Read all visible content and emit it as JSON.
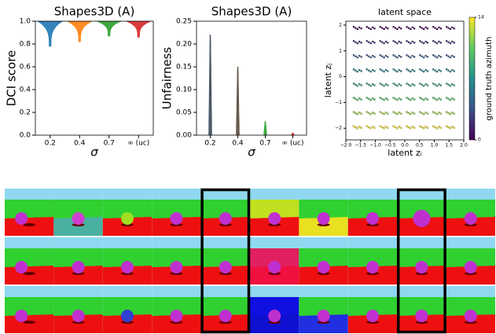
{
  "chart_data": [
    {
      "type": "violin",
      "title": "Shapes3D (A)",
      "ylabel": "DCI score",
      "xlabel": "σ",
      "categories": [
        "0.2",
        "0.4",
        "0.7",
        "∞ (uc)"
      ],
      "mins": [
        0.78,
        0.82,
        0.87,
        0.86
      ],
      "maxs": [
        1.0,
        1.0,
        1.0,
        1.0
      ],
      "colors": [
        "#1f77b4",
        "#ff7f0e",
        "#2ca02c",
        "#d62728"
      ],
      "ylim": [
        0,
        1
      ],
      "yticks": [
        {
          "value": 0,
          "label": "0.0"
        },
        0.2,
        0.4,
        0.6,
        0.8,
        {
          "value": 1,
          "label": "1.0"
        }
      ]
    },
    {
      "type": "violin",
      "title": "Shapes3D (A)",
      "ylabel": "Unfairness",
      "xlabel": "σ",
      "categories": [
        "0.2",
        "0.4",
        "0.7",
        "∞ (uc)"
      ],
      "mins": [
        0,
        0,
        0,
        0
      ],
      "maxs": [
        0.22,
        0.15,
        0.03,
        0.005
      ],
      "colors": [
        "#3a4a5a",
        "#5a4a3a",
        "#2ca02c",
        "#d62728"
      ],
      "ylim": [
        0,
        0.25
      ],
      "yticks": [
        {
          "value": 0,
          "label": "0.00"
        },
        {
          "value": 0.05,
          "label": "0.05"
        },
        {
          "value": 0.1,
          "label": "0.10"
        },
        {
          "value": 0.15,
          "label": "0.15"
        },
        {
          "value": 0.2,
          "label": "0.20"
        },
        {
          "value": 0.25,
          "label": "0.25"
        }
      ]
    },
    {
      "type": "scatter",
      "title": "latent space",
      "xlabel": "latent zᵢ",
      "ylabel": "latent zⱼ",
      "clabel": "ground truth azimuth",
      "clim": [
        0,
        14
      ],
      "cticks": [
        0,
        14
      ],
      "colormap": [
        "#440154",
        "#3b528b",
        "#21918c",
        "#5ec962",
        "#fde725"
      ],
      "xlim": [
        -2,
        2
      ],
      "ylim": [
        -2.45,
        2.15
      ],
      "xticks": [
        {
          "value": -2,
          "label": "−2.0"
        },
        {
          "value": -1.5,
          "label": "−1.5"
        },
        {
          "value": -1,
          "label": "−1.0"
        },
        {
          "value": -0.5,
          "label": "−0.5"
        },
        {
          "value": 0,
          "label": "0.0"
        },
        {
          "value": 0.5,
          "label": "0.5"
        },
        {
          "value": 1,
          "label": "1.0"
        },
        {
          "value": 1.5,
          "label": "1.5"
        },
        {
          "value": 2,
          "label": "2.0"
        }
      ],
      "yticks": [
        {
          "value": -2,
          "label": "−2"
        },
        {
          "value": -1,
          "label": "−1"
        },
        0,
        1,
        2
      ],
      "x": [
        -1.6,
        -1.15,
        -0.7,
        -0.25,
        0.2,
        0.65,
        1.1,
        1.55,
        -1.6,
        -1.15,
        -0.7,
        -0.25,
        0.2,
        0.65,
        1.1,
        1.55,
        -1.6,
        -1.15,
        -0.7,
        -0.25,
        0.2,
        0.65,
        1.1,
        1.55,
        -1.6,
        -1.15,
        -0.7,
        -0.25,
        0.2,
        0.65,
        1.1,
        1.55,
        -1.6,
        -1.15,
        -0.7,
        -0.25,
        0.2,
        0.65,
        1.1,
        1.55,
        -1.6,
        -1.15,
        -0.7,
        -0.25,
        0.2,
        0.65,
        1.1,
        1.55,
        -1.6,
        -1.15,
        -0.7,
        -0.25,
        0.2,
        0.65,
        1.1,
        1.55,
        -1.6,
        -1.15,
        -0.7,
        -0.25,
        0.2,
        0.65,
        1.1,
        1.55
      ],
      "y": [
        1.9,
        1.9,
        1.9,
        1.9,
        1.9,
        1.9,
        1.9,
        1.9,
        1.35,
        1.35,
        1.35,
        1.35,
        1.35,
        1.35,
        1.35,
        1.35,
        0.8,
        0.8,
        0.8,
        0.8,
        0.8,
        0.8,
        0.8,
        0.8,
        0.25,
        0.25,
        0.25,
        0.25,
        0.25,
        0.25,
        0.25,
        0.25,
        -0.3,
        -0.3,
        -0.3,
        -0.3,
        -0.3,
        -0.3,
        -0.3,
        -0.3,
        -0.85,
        -0.85,
        -0.85,
        -0.85,
        -0.85,
        -0.85,
        -0.85,
        -0.85,
        -1.4,
        -1.4,
        -1.4,
        -1.4,
        -1.4,
        -1.4,
        -1.4,
        -1.4,
        -1.95,
        -1.95,
        -1.95,
        -1.95,
        -1.95,
        -1.95,
        -1.95,
        -1.95
      ],
      "c": [
        0,
        0,
        0,
        0,
        0,
        0,
        0,
        0,
        2,
        2,
        2,
        2,
        2,
        2,
        2,
        2,
        4,
        4,
        4,
        4,
        4,
        4,
        4,
        4,
        6,
        6,
        6,
        6,
        6,
        6,
        6,
        6,
        8,
        8,
        8,
        8,
        8,
        8,
        8,
        8,
        10,
        10,
        10,
        10,
        10,
        10,
        10,
        10,
        12,
        12,
        12,
        12,
        12,
        12,
        12,
        12,
        14,
        14,
        14,
        14,
        14,
        14,
        14,
        14
      ]
    }
  ]
}
